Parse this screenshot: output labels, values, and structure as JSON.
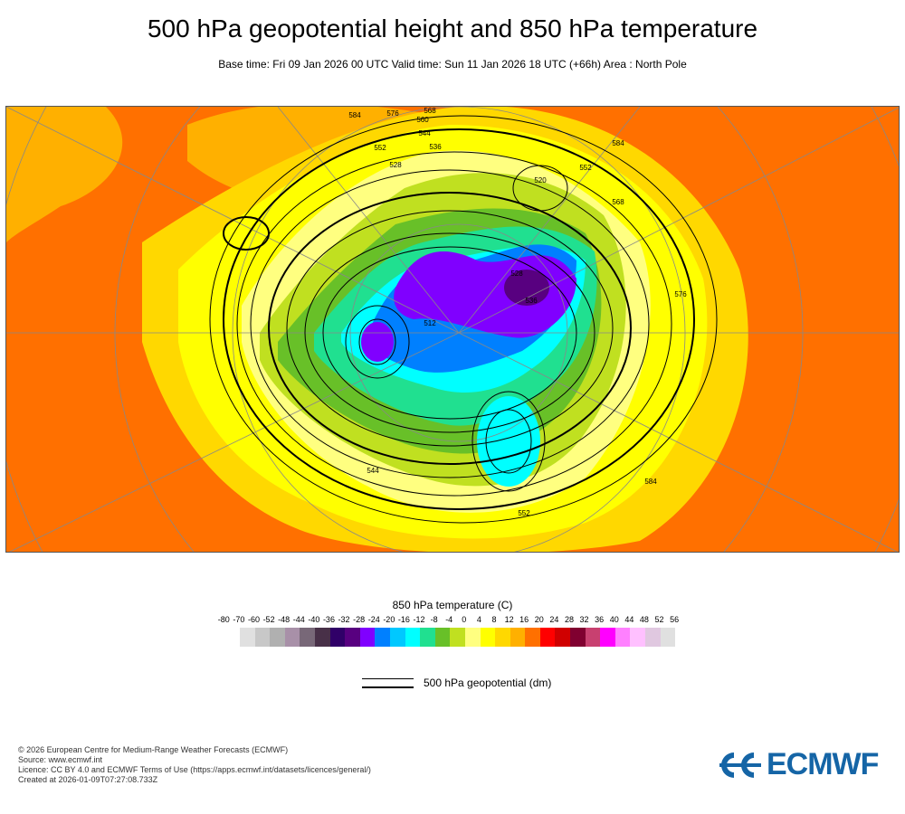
{
  "header": {
    "title": "500 hPa geopotential height and 850 hPa temperature",
    "subtitle": "Base time: Fri 09 Jan 2026 00 UTC Valid time: Sun 11 Jan 2026 18 UTC (+66h) Area : North Pole"
  },
  "map": {
    "contour_labels": [
      "584",
      "576",
      "568",
      "560",
      "552",
      "544",
      "536",
      "528",
      "520",
      "512",
      "528",
      "536",
      "552",
      "568",
      "584",
      "576",
      "584",
      "552",
      "544"
    ]
  },
  "legend": {
    "title": "850 hPa temperature (C)",
    "ticks": [
      "-80",
      "-70",
      "-60",
      "-52",
      "-48",
      "-44",
      "-40",
      "-36",
      "-32",
      "-28",
      "-24",
      "-20",
      "-16",
      "-12",
      "-8",
      "-4",
      "0",
      "4",
      "8",
      "12",
      "16",
      "20",
      "24",
      "28",
      "32",
      "36",
      "40",
      "44",
      "48",
      "52",
      "56"
    ],
    "colors": [
      "#e0e0e0",
      "#c8c8c8",
      "#b0b0b0",
      "#a890a8",
      "#786878",
      "#483048",
      "#300068",
      "#580080",
      "#8000ff",
      "#0080ff",
      "#00c8ff",
      "#00ffff",
      "#20e090",
      "#68c028",
      "#c0e020",
      "#ffff80",
      "#ffff00",
      "#ffd800",
      "#ffb000",
      "#ff7000",
      "#ff0000",
      "#d00000",
      "#800030",
      "#c84070",
      "#ff00ff",
      "#ff80ff",
      "#ffc0ff",
      "#e0c8e0",
      "#e0e0e0"
    ],
    "geopotential_label": "500 hPa geopotential (dm)"
  },
  "footer": {
    "lines": [
      "© 2026 European Centre for Medium-Range Weather Forecasts (ECMWF)",
      "Source: www.ecmwf.int",
      "Licence: CC BY 4.0 and ECMWF Terms of Use (https://apps.ecmwf.int/datasets/licences/general/)",
      "Created at 2026-01-09T07:27:08.733Z"
    ],
    "logo_text": "ECMWF",
    "logo_color": "#1565a6"
  }
}
